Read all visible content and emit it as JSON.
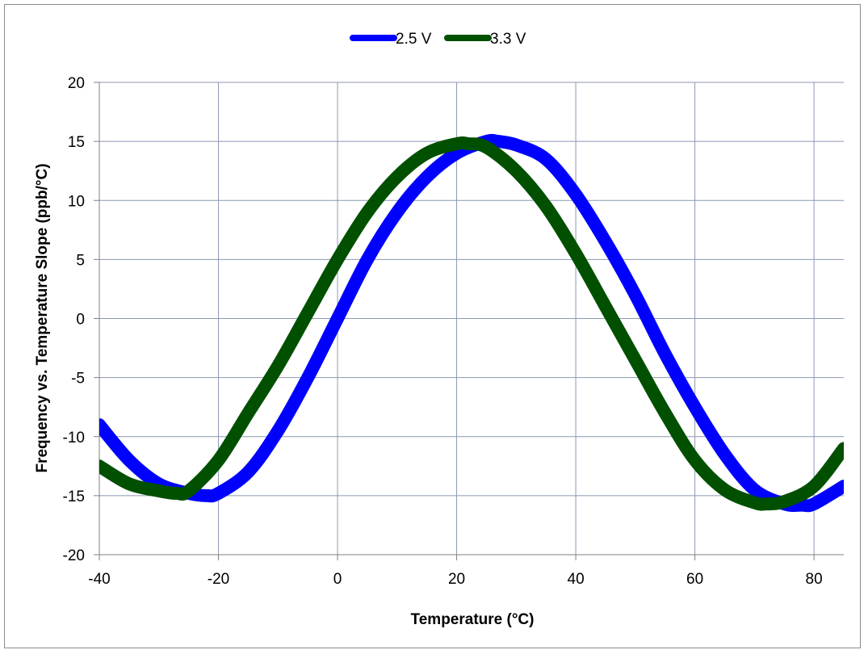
{
  "chart_data": {
    "type": "line",
    "title": "",
    "xlabel": "Temperature (°C)",
    "ylabel": "Frequency vs. Temperature Slope (ppb/°C)",
    "xlim": [
      -40,
      85
    ],
    "ylim": [
      -20,
      20
    ],
    "x_ticks": [
      -40,
      -20,
      0,
      20,
      40,
      60,
      80
    ],
    "y_ticks": [
      -20,
      -15,
      -10,
      -5,
      0,
      5,
      10,
      15,
      20
    ],
    "grid": true,
    "legend_position": "top-center",
    "series": [
      {
        "name": "2.5 V",
        "color": "#0000ff",
        "x": [
          -40,
          -35,
          -30,
          -25,
          -22,
          -20,
          -15,
          -10,
          -5,
          0,
          5,
          10,
          15,
          20,
          25,
          27,
          30,
          35,
          40,
          45,
          50,
          55,
          60,
          65,
          70,
          75,
          78,
          80,
          85
        ],
        "y": [
          -9,
          -12,
          -14,
          -14.8,
          -15,
          -14.8,
          -13,
          -9.5,
          -5,
          0,
          5,
          9,
          12,
          14,
          15,
          15,
          14.7,
          13.5,
          10.5,
          6.5,
          2,
          -3,
          -7.5,
          -11.5,
          -14.5,
          -15.7,
          -15.8,
          -15.7,
          -14.2
        ]
      },
      {
        "name": "3.3 V",
        "color": "#005000",
        "x": [
          -40,
          -35,
          -30,
          -27,
          -25,
          -20,
          -15,
          -10,
          -5,
          0,
          5,
          10,
          15,
          20,
          22,
          25,
          30,
          35,
          40,
          45,
          50,
          55,
          60,
          65,
          70,
          72,
          75,
          80,
          85
        ],
        "y": [
          -12.5,
          -14,
          -14.6,
          -14.8,
          -14.6,
          -12,
          -8,
          -4,
          0.5,
          5,
          9,
          12,
          14,
          14.8,
          14.8,
          14.5,
          12.5,
          9.5,
          5.5,
          1,
          -3.5,
          -8,
          -12,
          -14.5,
          -15.6,
          -15.7,
          -15.5,
          -14.2,
          -11
        ]
      }
    ]
  }
}
